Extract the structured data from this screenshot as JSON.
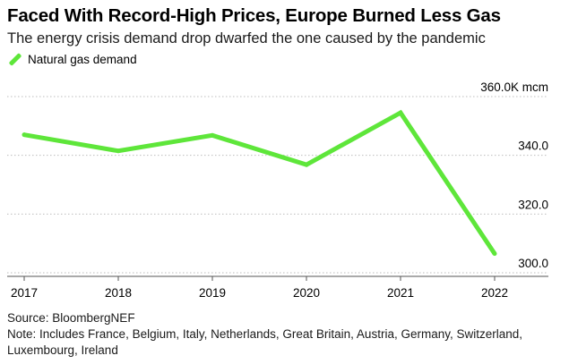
{
  "header": {
    "title": "Faced With Record-High Prices, Europe Burned Less Gas",
    "subtitle": "The energy crisis demand drop dwarfed the one caused by the pandemic"
  },
  "legend": {
    "label": "Natural gas demand",
    "color": "#5ee63a"
  },
  "chart_data": {
    "type": "line",
    "title": "Faced With Record-High Prices, Europe Burned Less Gas",
    "subtitle": "The energy crisis demand drop dwarfed the one caused by the pandemic",
    "xlabel": "",
    "ylabel": "",
    "x": [
      "2017",
      "2018",
      "2019",
      "2020",
      "2021",
      "2022"
    ],
    "series": [
      {
        "name": "Natural gas demand",
        "color": "#5ee63a",
        "values": [
          347,
          341.5,
          346.8,
          336.8,
          354.5,
          306.5
        ]
      }
    ],
    "ylim": [
      300,
      360
    ],
    "yticks": [
      300,
      320,
      340,
      360
    ],
    "ytick_labels": [
      "300.0",
      "320.0",
      "340.0",
      "360.0K mcm"
    ],
    "grid": "horizontal-dotted",
    "legend_position": "top-left",
    "y_axis_side": "right"
  },
  "footer": {
    "source": "Source: BloombergNEF",
    "note_line1": "Note: Includes France, Belgium, Italy, Netherlands, Great Britain, Austria, Germany, Switzerland,",
    "note_line2": "Luxembourg, Ireland"
  }
}
